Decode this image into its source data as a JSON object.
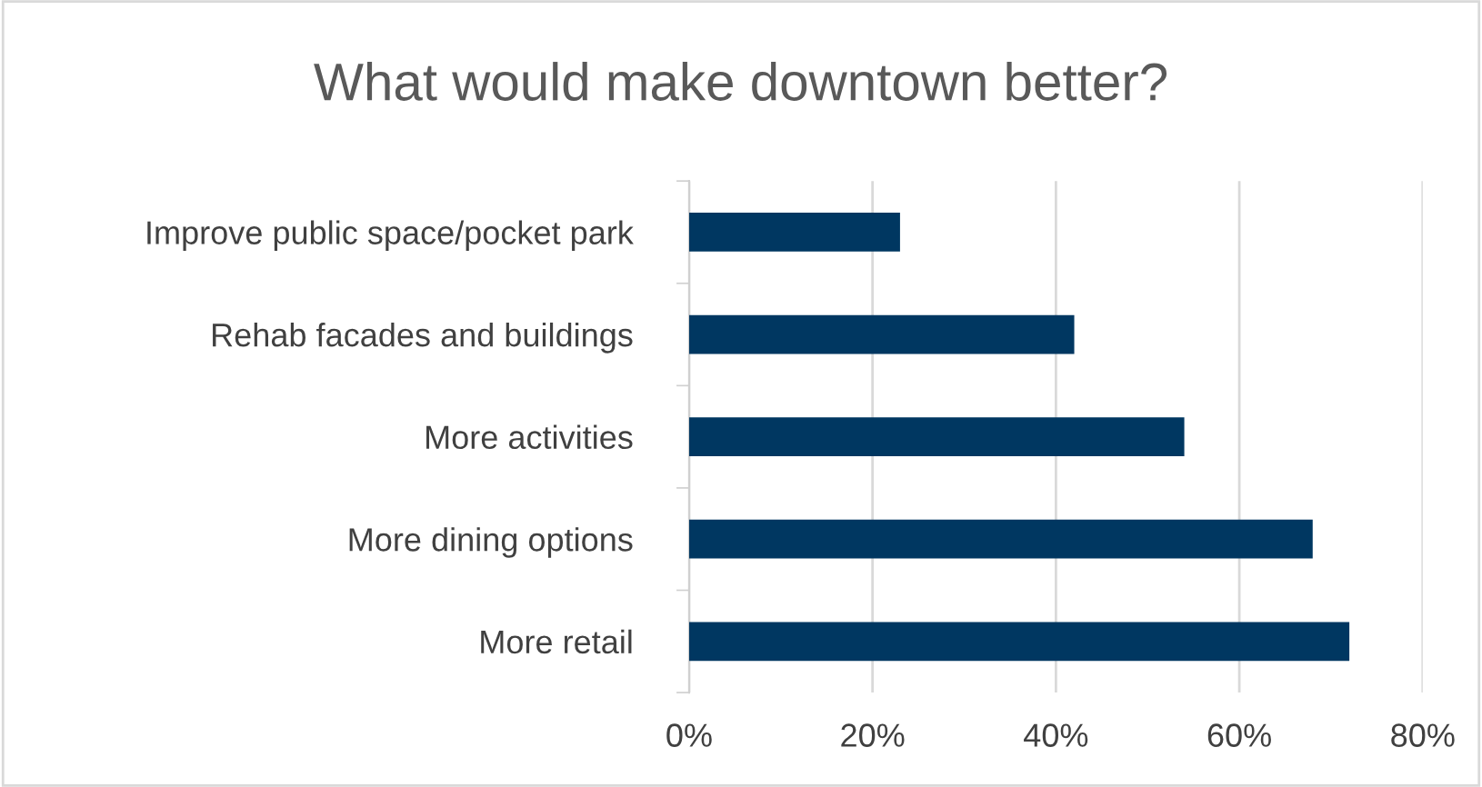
{
  "chart_data": {
    "type": "bar",
    "orientation": "horizontal",
    "title": "What would make downtown better?",
    "categories": [
      "Improve public space/pocket park",
      "Rehab facades and buildings",
      "More activities",
      "More dining options",
      "More retail"
    ],
    "values": [
      23,
      42,
      54,
      68,
      72
    ],
    "color": "#003761",
    "xlim": [
      0,
      80
    ],
    "xticks": [
      {
        "value": 0,
        "label": "0%"
      },
      {
        "value": 20,
        "label": "20%"
      },
      {
        "value": 40,
        "label": "40%"
      },
      {
        "value": 60,
        "label": "60%"
      },
      {
        "value": 80,
        "label": "80%"
      }
    ],
    "grid": "x",
    "legend": false
  }
}
